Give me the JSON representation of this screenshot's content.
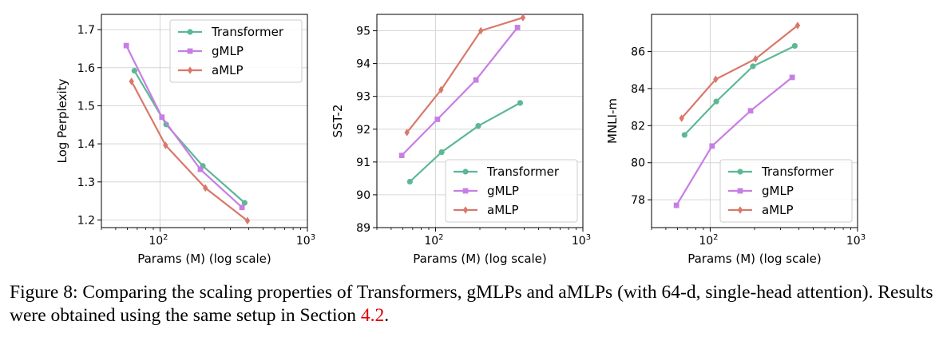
{
  "colors": {
    "transformer": "#5cb894",
    "gmlp": "#c77ee4",
    "amlp": "#d9786a",
    "axis": "#000000",
    "grid": "#d6d6d6",
    "link": "#e00000"
  },
  "chart_data": [
    {
      "type": "line",
      "xlabel": "Params (M) (log scale)",
      "ylabel": "Log Perplexity",
      "xscale": "log",
      "xlim": [
        40,
        1000
      ],
      "ylim": [
        1.18,
        1.74
      ],
      "yticks": [
        "1.2",
        "1.3",
        "1.4",
        "1.5",
        "1.6",
        "1.7"
      ],
      "grid": true,
      "legend": "top-right",
      "series": [
        {
          "name": "Transformer",
          "marker": "circle",
          "x": [
            67,
            110,
            195,
            375
          ],
          "y": [
            1.592,
            1.451,
            1.342,
            1.245
          ]
        },
        {
          "name": "gMLP",
          "marker": "square",
          "x": [
            59,
            103,
            188,
            360
          ],
          "y": [
            1.658,
            1.47,
            1.333,
            1.233
          ]
        },
        {
          "name": "aMLP",
          "marker": "diamond",
          "x": [
            64,
            109,
            203,
            392
          ],
          "y": [
            1.564,
            1.396,
            1.284,
            1.198
          ]
        }
      ]
    },
    {
      "type": "line",
      "xlabel": "Params (M) (log scale)",
      "ylabel": "SST-2",
      "xscale": "log",
      "xlim": [
        40,
        1000
      ],
      "ylim": [
        89,
        95.5
      ],
      "yticks": [
        "89",
        "90",
        "91",
        "92",
        "93",
        "94",
        "95"
      ],
      "grid": true,
      "legend": "bottom-right",
      "series": [
        {
          "name": "Transformer",
          "marker": "circle",
          "x": [
            67,
            110,
            195,
            375
          ],
          "y": [
            90.4,
            91.3,
            92.1,
            92.8
          ]
        },
        {
          "name": "gMLP",
          "marker": "square",
          "x": [
            59,
            103,
            188,
            360
          ],
          "y": [
            91.2,
            92.3,
            93.5,
            95.1
          ]
        },
        {
          "name": "aMLP",
          "marker": "diamond",
          "x": [
            64,
            109,
            203,
            392
          ],
          "y": [
            91.9,
            93.2,
            95.0,
            95.4
          ]
        }
      ]
    },
    {
      "type": "line",
      "xlabel": "Params (M) (log scale)",
      "ylabel": "MNLI-m",
      "xscale": "log",
      "xlim": [
        40,
        1000
      ],
      "ylim": [
        76.5,
        88
      ],
      "yticks": [
        "78",
        "80",
        "82",
        "84",
        "86"
      ],
      "grid": true,
      "legend": "bottom-right",
      "series": [
        {
          "name": "Transformer",
          "marker": "circle",
          "x": [
            67,
            110,
            195,
            375
          ],
          "y": [
            81.5,
            83.3,
            85.2,
            86.3
          ]
        },
        {
          "name": "gMLP",
          "marker": "square",
          "x": [
            59,
            103,
            188,
            360
          ],
          "y": [
            77.7,
            80.9,
            82.8,
            84.6
          ]
        },
        {
          "name": "aMLP",
          "marker": "diamond",
          "x": [
            64,
            109,
            203,
            392
          ],
          "y": [
            82.4,
            84.5,
            85.6,
            87.4
          ]
        }
      ]
    }
  ],
  "caption": {
    "prefix": "Figure 8: Comparing the scaling properties of Transformers, gMLPs and aMLPs (with 64-d, single-head attention). Results were obtained using the same setup in Section ",
    "section_ref": "4.2",
    "suffix": "."
  }
}
